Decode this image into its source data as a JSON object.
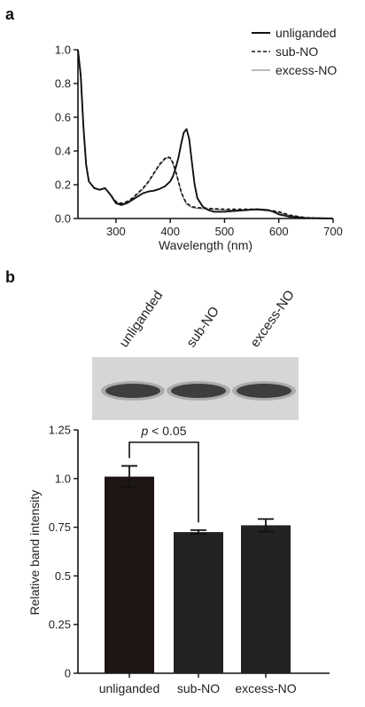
{
  "panels": {
    "a": "a",
    "b": "b"
  },
  "chart_data": [
    {
      "type": "line",
      "panel": "a",
      "xlabel": "Wavelength (nm)",
      "ylabel": "",
      "xlim": [
        230,
        700
      ],
      "ylim": [
        0,
        1.0
      ],
      "xticks": [
        300,
        400,
        500,
        600,
        700
      ],
      "xtick_labels": [
        "300",
        "400",
        "500",
        "600",
        "700"
      ],
      "yticks": [
        0,
        0.2,
        0.4,
        0.6,
        0.8,
        1.0
      ],
      "ytick_labels": [
        "0.0",
        "0.2",
        "0.4",
        "0.6",
        "0.8",
        "1.0"
      ],
      "legend_position": "top-right",
      "series": [
        {
          "name": "unliganded",
          "style": "solid-thick",
          "color": "#111111",
          "x": [
            230,
            235,
            240,
            245,
            250,
            260,
            270,
            280,
            290,
            300,
            310,
            320,
            330,
            340,
            350,
            360,
            370,
            380,
            390,
            400,
            405,
            410,
            415,
            420,
            425,
            430,
            435,
            440,
            445,
            450,
            460,
            470,
            480,
            500,
            520,
            540,
            560,
            580,
            590,
            600,
            620,
            650,
            700
          ],
          "y": [
            1.0,
            0.85,
            0.55,
            0.32,
            0.22,
            0.18,
            0.17,
            0.18,
            0.14,
            0.09,
            0.08,
            0.09,
            0.11,
            0.13,
            0.15,
            0.16,
            0.165,
            0.175,
            0.19,
            0.22,
            0.25,
            0.3,
            0.36,
            0.44,
            0.51,
            0.53,
            0.47,
            0.33,
            0.2,
            0.12,
            0.07,
            0.05,
            0.04,
            0.04,
            0.045,
            0.05,
            0.055,
            0.05,
            0.04,
            0.025,
            0.01,
            0.003,
            0.0
          ]
        },
        {
          "name": "sub-NO",
          "style": "dashed",
          "color": "#111111",
          "x": [
            230,
            235,
            240,
            245,
            250,
            260,
            270,
            280,
            290,
            300,
            310,
            320,
            330,
            340,
            350,
            360,
            370,
            380,
            390,
            395,
            400,
            405,
            410,
            415,
            420,
            425,
            430,
            440,
            450,
            470,
            500,
            530,
            560,
            580,
            600,
            620,
            650,
            700
          ],
          "y": [
            1.0,
            0.85,
            0.55,
            0.32,
            0.22,
            0.18,
            0.17,
            0.18,
            0.14,
            0.1,
            0.09,
            0.1,
            0.12,
            0.15,
            0.18,
            0.22,
            0.27,
            0.32,
            0.355,
            0.365,
            0.36,
            0.33,
            0.28,
            0.22,
            0.16,
            0.12,
            0.09,
            0.07,
            0.065,
            0.06,
            0.055,
            0.055,
            0.055,
            0.05,
            0.04,
            0.02,
            0.005,
            0.0
          ]
        },
        {
          "name": "excess-NO",
          "style": "solid-thin",
          "color": "#777777",
          "x": [
            230,
            235,
            240,
            245,
            250,
            260,
            270,
            280,
            290,
            300,
            310,
            320,
            330,
            340,
            350,
            360,
            370,
            380,
            390,
            395,
            400,
            405,
            410,
            415,
            420,
            425,
            430,
            440,
            450,
            470,
            500,
            530,
            560,
            580,
            600,
            620,
            650,
            700
          ],
          "y": [
            1.0,
            0.85,
            0.55,
            0.32,
            0.22,
            0.18,
            0.17,
            0.18,
            0.14,
            0.095,
            0.085,
            0.095,
            0.115,
            0.145,
            0.175,
            0.215,
            0.265,
            0.315,
            0.35,
            0.36,
            0.355,
            0.325,
            0.275,
            0.215,
            0.155,
            0.115,
            0.085,
            0.065,
            0.06,
            0.055,
            0.05,
            0.05,
            0.05,
            0.045,
            0.035,
            0.018,
            0.004,
            0.0
          ]
        }
      ]
    },
    {
      "type": "image",
      "panel": "b",
      "lane_labels": [
        "unliganded",
        "sub-NO",
        "excess-NO"
      ],
      "band_color": "#2a2a2a",
      "background_color": "#d6d6d6"
    },
    {
      "type": "bar",
      "panel": "b",
      "categories": [
        "unliganded",
        "sub-NO",
        "excess-NO"
      ],
      "values": [
        1.01,
        0.725,
        0.76
      ],
      "errors": [
        0.055,
        0.01,
        0.032
      ],
      "colors": [
        "#1f1515",
        "#222222",
        "#222222"
      ],
      "ylabel": "Relative band intensity",
      "xlabel": "",
      "ylim": [
        0,
        1.25
      ],
      "yticks": [
        0,
        0.25,
        0.5,
        0.75,
        1.0,
        1.25
      ],
      "ytick_labels": [
        "0",
        "0.25",
        "0.5",
        "0.75",
        "1.0",
        "1.25"
      ],
      "annotation": {
        "text_p": "p",
        "text_rest": " < 0.05",
        "from": 0,
        "to": 1
      }
    }
  ]
}
